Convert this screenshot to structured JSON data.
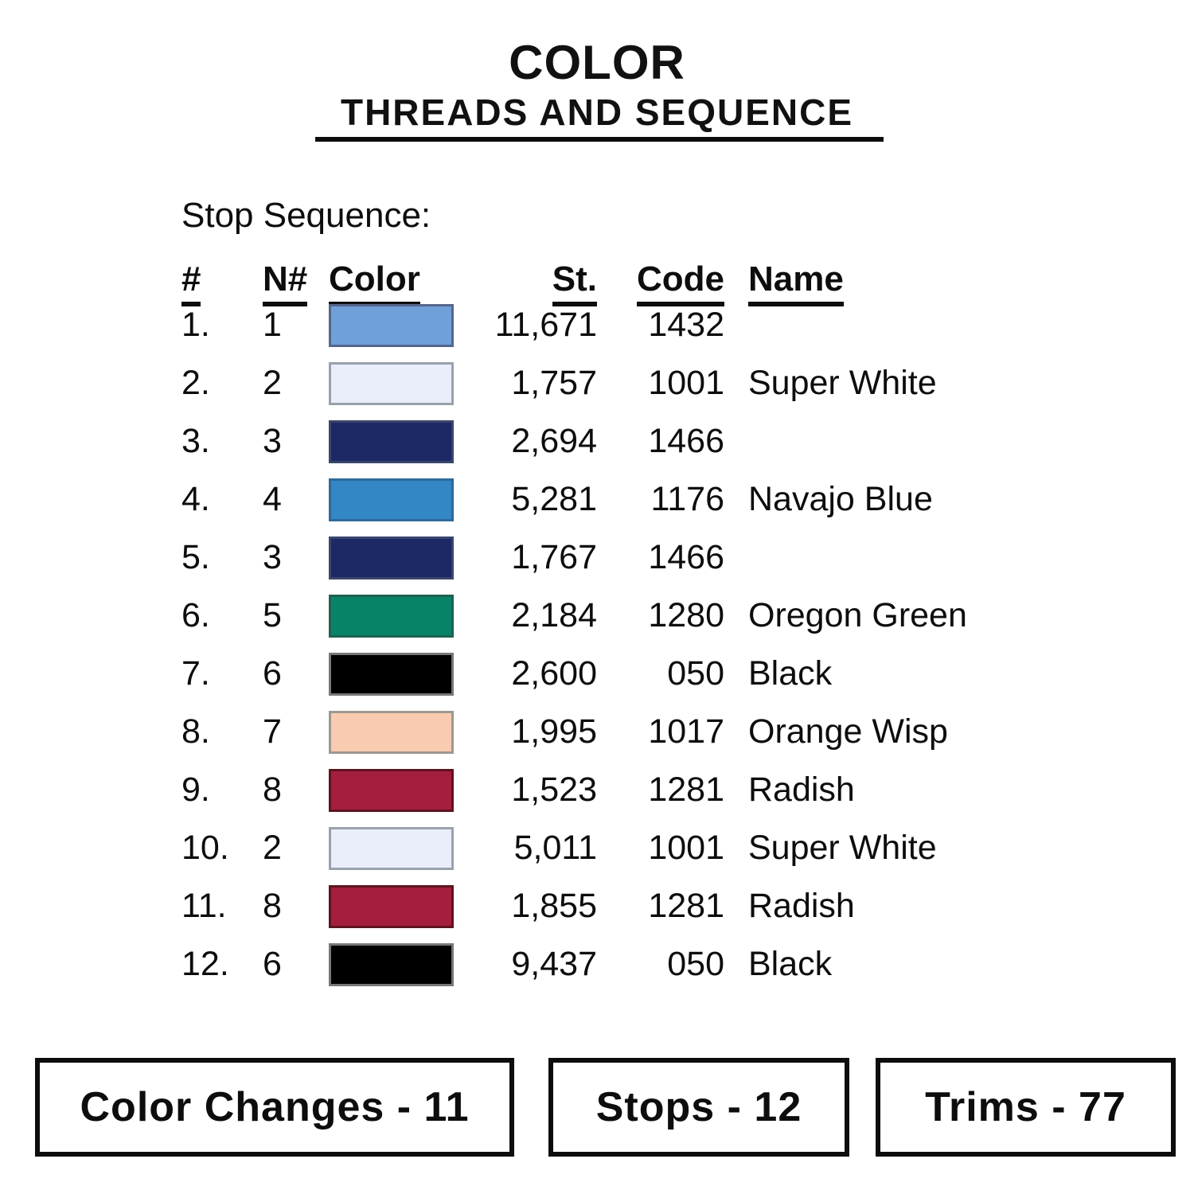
{
  "title": {
    "line1": "COLOR",
    "line2": "THREADS AND SEQUENCE"
  },
  "section_heading": "Stop Sequence:",
  "table": {
    "headers": {
      "num": "#",
      "needle": "N#",
      "color": "Color",
      "stitches": "St.",
      "code": "Code",
      "name": "Name"
    },
    "rows": [
      {
        "num": "1.",
        "needle": "1",
        "swatch": "#6FA0DA",
        "border": "#55668C",
        "st": "11,671",
        "code": "1432",
        "name": ""
      },
      {
        "num": "2.",
        "needle": "2",
        "swatch": "#E9EEFA",
        "border": "#9AA1AD",
        "st": "1,757",
        "code": "1001",
        "name": "Super White"
      },
      {
        "num": "3.",
        "needle": "3",
        "swatch": "#1D2965",
        "border": "#39466B",
        "st": "2,694",
        "code": "1466",
        "name": ""
      },
      {
        "num": "4.",
        "needle": "4",
        "swatch": "#3287C4",
        "border": "#2E6A99",
        "st": "5,281",
        "code": "1176",
        "name": "Navajo Blue"
      },
      {
        "num": "5.",
        "needle": "3",
        "swatch": "#1D2965",
        "border": "#39466B",
        "st": "1,767",
        "code": "1466",
        "name": ""
      },
      {
        "num": "6.",
        "needle": "5",
        "swatch": "#078467",
        "border": "#1F6150",
        "st": "2,184",
        "code": "1280",
        "name": "Oregon Green"
      },
      {
        "num": "7.",
        "needle": "6",
        "swatch": "#000000",
        "border": "#777777",
        "st": "2,600",
        "code": "050",
        "name": "Black"
      },
      {
        "num": "8.",
        "needle": "7",
        "swatch": "#F9CBB0",
        "border": "#9E9890",
        "st": "1,995",
        "code": "1017",
        "name": "Orange Wisp"
      },
      {
        "num": "9.",
        "needle": "8",
        "swatch": "#A41F3E",
        "border": "#5E1322",
        "st": "1,523",
        "code": "1281",
        "name": "Radish"
      },
      {
        "num": "10.",
        "needle": "2",
        "swatch": "#E9EEFA",
        "border": "#9AA1AD",
        "st": "5,011",
        "code": "1001",
        "name": "Super White"
      },
      {
        "num": "11.",
        "needle": "8",
        "swatch": "#A41F3E",
        "border": "#5E1322",
        "st": "1,855",
        "code": "1281",
        "name": "Radish"
      },
      {
        "num": "12.",
        "needle": "6",
        "swatch": "#000000",
        "border": "#777777",
        "st": "9,437",
        "code": "050",
        "name": "Black"
      }
    ]
  },
  "footer": {
    "color_changes_label": "Color Changes - 11",
    "stops_label": "Stops - 12",
    "trims_label": "Trims - 77"
  }
}
